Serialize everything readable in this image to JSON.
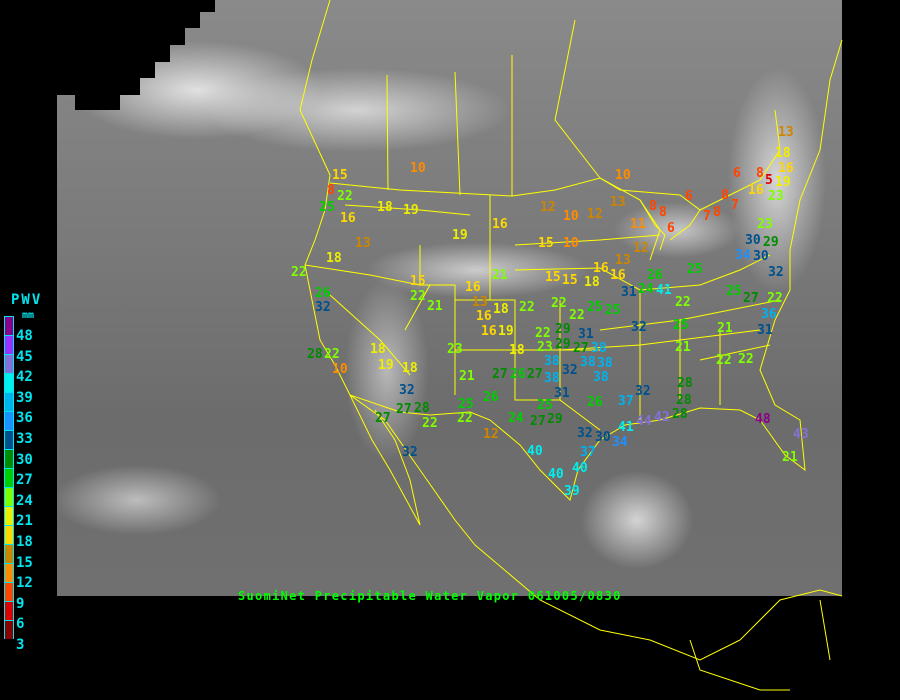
{
  "title": "SuomiNet Precipitable Water Vapor 061005/0830",
  "legend": {
    "title": "PWV",
    "unit": "mm",
    "labels": [
      "48",
      "45",
      "42",
      "39",
      "36",
      "33",
      "30",
      "27",
      "24",
      "21",
      "18",
      "15",
      "12",
      "9",
      "6",
      "3"
    ],
    "colors": [
      "#8b008b",
      "#9b30ff",
      "#8470d8",
      "#00eeee",
      "#00b2ee",
      "#1e90ff",
      "#00508c",
      "#008b00",
      "#00cd00",
      "#7fff00",
      "#eeee00",
      "#ffd700",
      "#cd8500",
      "#ff8c00",
      "#ff4500",
      "#dd0000",
      "#8b0000"
    ]
  },
  "boundary_color": "#ffff00",
  "stations": [
    10,
    15,
    8,
    22,
    25,
    16,
    18,
    19,
    13,
    18,
    22,
    26,
    32,
    19,
    16,
    21,
    15,
    22,
    21,
    16,
    13,
    16,
    18,
    16,
    19,
    18,
    19,
    18,
    23,
    21,
    28,
    22,
    10,
    32,
    27,
    27,
    28,
    22,
    32,
    22,
    25,
    12,
    26,
    27,
    26,
    27,
    24,
    27,
    25,
    29,
    26,
    37,
    32,
    30,
    34,
    37,
    40,
    40,
    40,
    39,
    41,
    44,
    42,
    28,
    28,
    32,
    28,
    16,
    12,
    10,
    12,
    15,
    10,
    10,
    13,
    11,
    12,
    16,
    13,
    15,
    15,
    18,
    8,
    8,
    6,
    6,
    6,
    8,
    5,
    8,
    7,
    8,
    7,
    16,
    13,
    18,
    16,
    19,
    23,
    23,
    30,
    29,
    34,
    30,
    32,
    25,
    26,
    24,
    31,
    41,
    22,
    25,
    27,
    22,
    36,
    32,
    25,
    21,
    31,
    21,
    22,
    22,
    48,
    43,
    21,
    22,
    22,
    22,
    25,
    25,
    18,
    22,
    23,
    29,
    29,
    27,
    31,
    38,
    38,
    32,
    38,
    38,
    38,
    38,
    31
  ]
}
